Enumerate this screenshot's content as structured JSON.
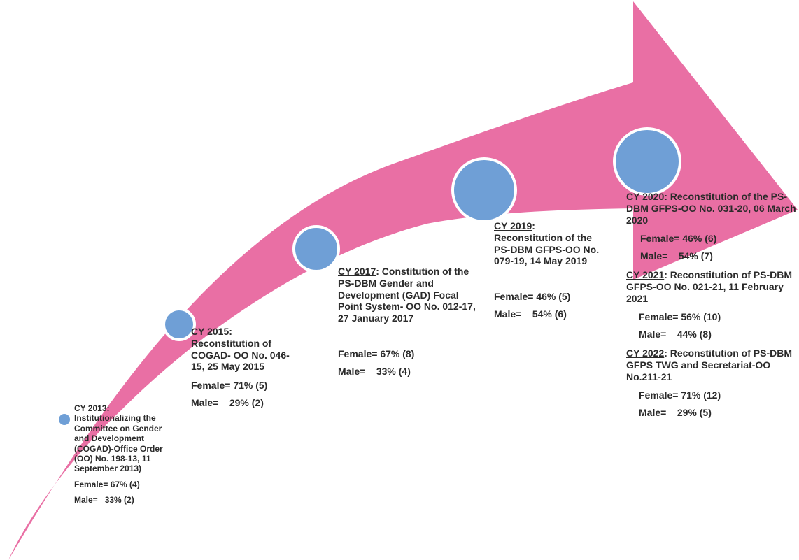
{
  "colors": {
    "arrow": "#e96fa4",
    "dot": "#6f9fd6",
    "dot_border": "#ffffff"
  },
  "entries": [
    {
      "cy": "CY 2013",
      "title": ": Institutionalizing the Committee on Gender and Development (COGAD)-Office Order (OO) No. 198-13, 11 September 2013)",
      "female": "Female= 67% (4)",
      "male": "Male=   33% (2)"
    },
    {
      "cy": "CY 2015",
      "title": ": Reconstitution of COGAD- OO No. 046-15, 25 May 2015",
      "female": "Female= 71% (5)",
      "male": "Male=    29% (2)"
    },
    {
      "cy": "CY 2017",
      "title": ": Constitution of the PS-DBM Gender and Development (GAD) Focal Point System- OO No. 012-17, 27 January 2017",
      "female": "Female= 67% (8)",
      "male": "Male=    33% (4)"
    },
    {
      "cy": "CY 2019",
      "title": ": Reconstitution of the PS-DBM GFPS-OO No. 079-19, 14 May 2019",
      "female": "Female= 46% (5)",
      "male": "Male=    54% (6)"
    },
    {
      "cy": "CY 2020",
      "title": ": Reconstitution of the PS-DBM GFPS-OO No. 031-20, 06 March 2020",
      "female": "Female= 46% (6)",
      "male": "Male=    54% (7)"
    },
    {
      "cy": "CY 2021",
      "title": ": Reconstitution of PS-DBM GFPS-OO No. 021-21, 11 February 2021",
      "female": "Female= 56% (10)",
      "male": "Male=    44% (8)"
    },
    {
      "cy": "CY 2022",
      "title": ": Reconstitution of PS-DBM GFPS TWG and Secretariat-OO No.211-21",
      "female": "Female= 71% (12)",
      "male": "Male=    29% (5)"
    }
  ]
}
